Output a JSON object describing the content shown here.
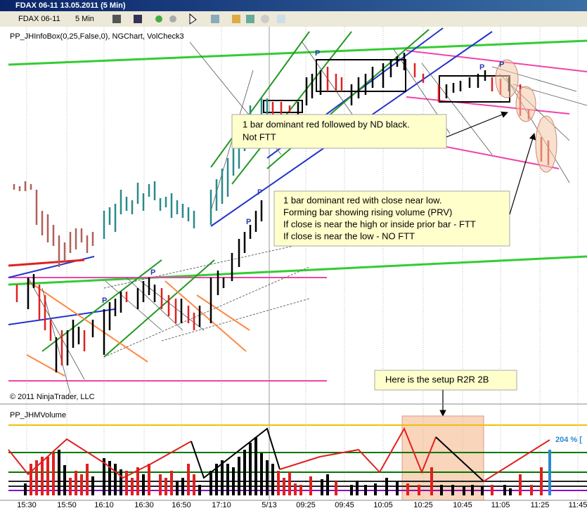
{
  "window": {
    "title": "FDAX 06-11  13.05.2011 (5 Min)"
  },
  "toolbar": {
    "instrument": "FDAX 06-11",
    "interval": "5 Min"
  },
  "price_panel": {
    "indicator_label": "PP_JHInfoBox(0,25,False,0), NGChart, VolCheck3",
    "copyright": "© 2011 NinjaTrader, LLC",
    "pivot_marker": "P",
    "annotations": [
      {
        "lines": [
          "1 bar dominant red followed by ND black.",
          "Not FTT"
        ]
      },
      {
        "lines": [
          "1 bar dominant red with close near low.",
          "Forming bar showing rising volume (PRV)",
          "If close is near the high or inside prior bar - FTT",
          "If close is near the low - NO FTT"
        ]
      },
      {
        "lines": [
          "Here is the setup R2R 2B"
        ]
      }
    ]
  },
  "volume_panel": {
    "indicator_label": "PP_JHMVolume",
    "volume_readout": "204 % ["
  },
  "time_axis": {
    "labels": [
      "15:30",
      "15:50",
      "16:10",
      "16:30",
      "16:50",
      "17:10",
      "5/13",
      "09:25",
      "09:45",
      "10:05",
      "10:25",
      "10:45",
      "11:05",
      "11:25",
      "11:45"
    ]
  }
}
